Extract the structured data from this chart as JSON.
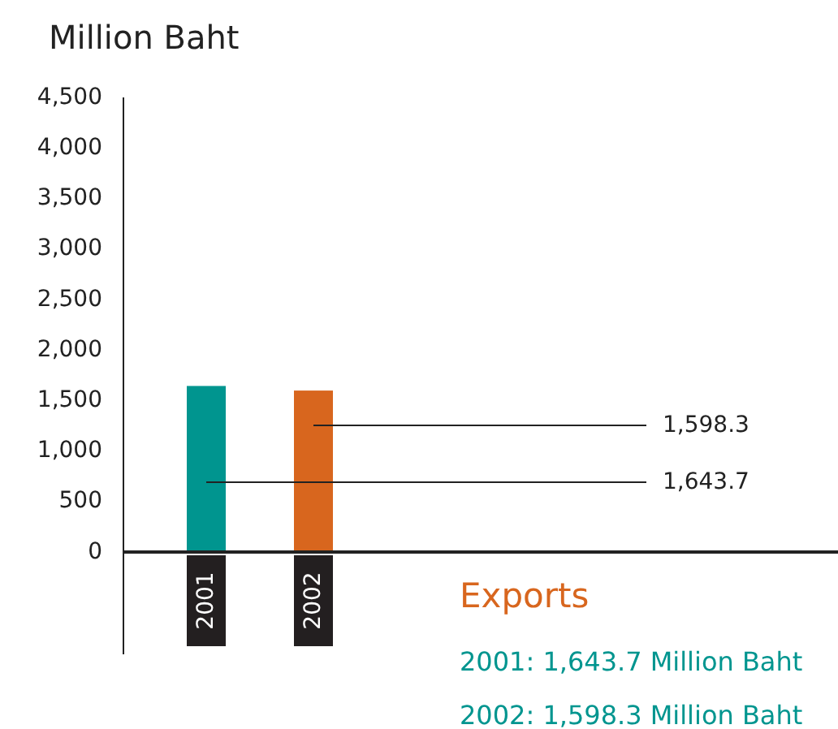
{
  "chart_data": {
    "type": "bar",
    "ylabel": "Million Baht",
    "categories": [
      "2001",
      "2002"
    ],
    "values": [
      1643.7,
      1598.3
    ],
    "colors": [
      "#00958f",
      "#d8661e"
    ],
    "ylim": [
      0,
      4500
    ],
    "yticks": [
      0,
      {
        "value": 500,
        "label": "500"
      },
      {
        "value": 1000,
        "label": "1,000"
      },
      {
        "value": 1500,
        "label": "1,500"
      },
      {
        "value": 2000,
        "label": "2,000"
      },
      {
        "value": 2500,
        "label": "2,500"
      },
      {
        "value": 3000,
        "label": "3,000"
      },
      {
        "value": 3500,
        "label": "3,500"
      },
      {
        "value": 4000,
        "label": "4,000"
      },
      {
        "value": 4500,
        "label": "4,500"
      }
    ],
    "value_labels": [
      "1,643.7",
      "1,598.3"
    ],
    "grid": false,
    "annotations": [
      "Exports",
      "2001: 1,643.7 Million Baht",
      "2002: 1,598.3 Million Baht"
    ]
  }
}
